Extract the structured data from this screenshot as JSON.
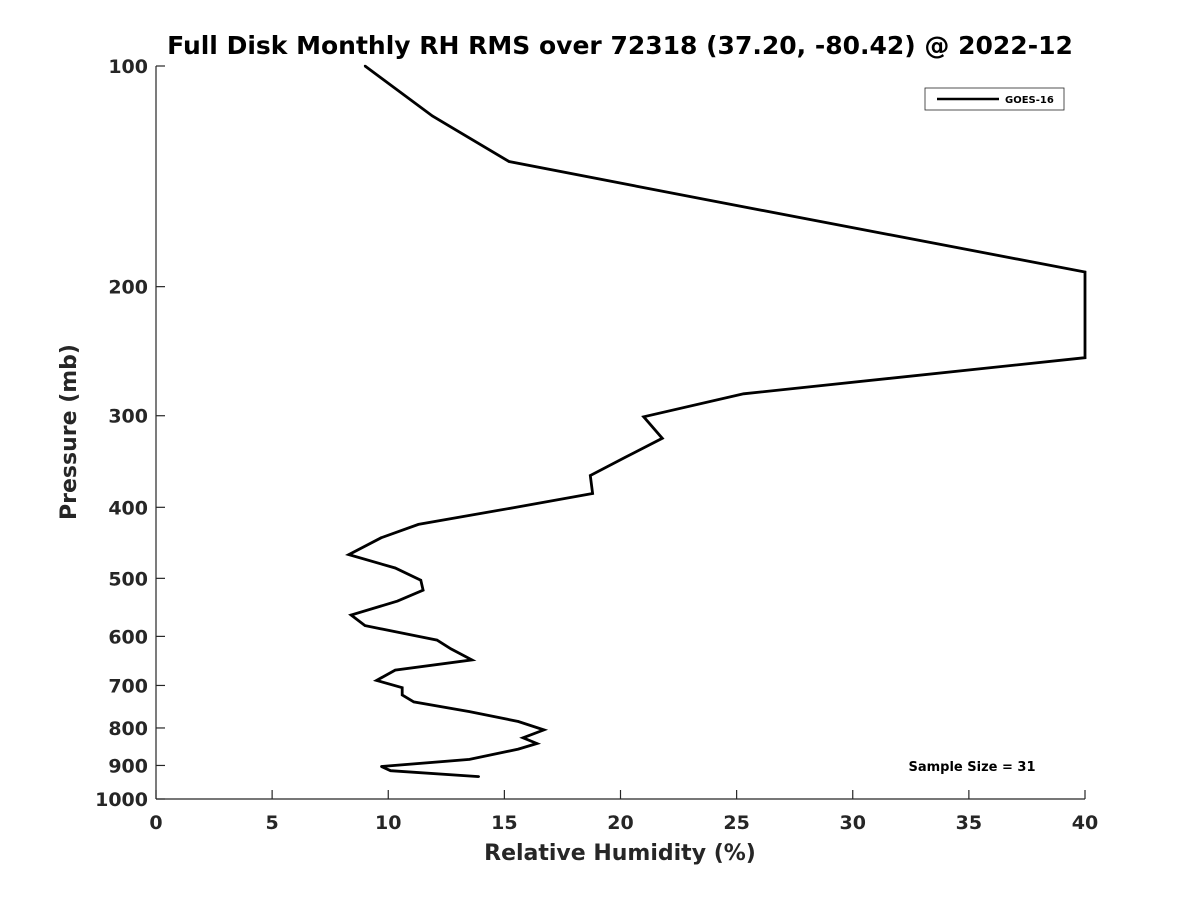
{
  "chart_data": {
    "type": "line",
    "title": "Full Disk Monthly RH RMS over 72318 (37.20, -80.42) @ 2022-12",
    "xlabel": "Relative Humidity (%)",
    "ylabel": "Pressure (mb)",
    "xlim": [
      0,
      40
    ],
    "ylim": [
      100,
      1000
    ],
    "y_scale": "log",
    "y_reversed": true,
    "x_ticks": [
      "0",
      "5",
      "10",
      "15",
      "20",
      "25",
      "30",
      "35",
      "40"
    ],
    "y_ticks": [
      "100",
      "200",
      "300",
      "400",
      "500",
      "600",
      "700",
      "800",
      "900",
      "1000"
    ],
    "grid": false,
    "legend_position": "top-right",
    "annotation": "Sample Size = 31",
    "line_color": "#000000",
    "series": [
      {
        "name": "GOES-16",
        "points": [
          [
            9.0,
            100
          ],
          [
            11.9,
            117
          ],
          [
            15.2,
            135
          ],
          [
            23.6,
            152
          ],
          [
            40.0,
            191
          ],
          [
            40.0,
            250
          ],
          [
            25.3,
            280
          ],
          [
            21.0,
            301
          ],
          [
            21.8,
            322
          ],
          [
            20.2,
            342
          ],
          [
            18.7,
            362
          ],
          [
            18.8,
            383
          ],
          [
            15.3,
            401
          ],
          [
            11.3,
            422
          ],
          [
            9.7,
            440
          ],
          [
            8.3,
            464
          ],
          [
            10.3,
            484
          ],
          [
            11.4,
            503
          ],
          [
            11.5,
            519
          ],
          [
            10.4,
            537
          ],
          [
            8.4,
            561
          ],
          [
            9.0,
            580
          ],
          [
            12.1,
            607
          ],
          [
            12.7,
            624
          ],
          [
            13.6,
            646
          ],
          [
            10.3,
            667
          ],
          [
            9.5,
            689
          ],
          [
            10.6,
            705
          ],
          [
            10.6,
            721
          ],
          [
            11.1,
            737
          ],
          [
            13.5,
            760
          ],
          [
            15.6,
            784
          ],
          [
            16.7,
            805
          ],
          [
            15.8,
            825
          ],
          [
            16.4,
            840
          ],
          [
            15.6,
            855
          ],
          [
            13.5,
            883
          ],
          [
            9.7,
            903
          ],
          [
            10.1,
            915
          ],
          [
            13.9,
            932
          ]
        ]
      }
    ]
  }
}
